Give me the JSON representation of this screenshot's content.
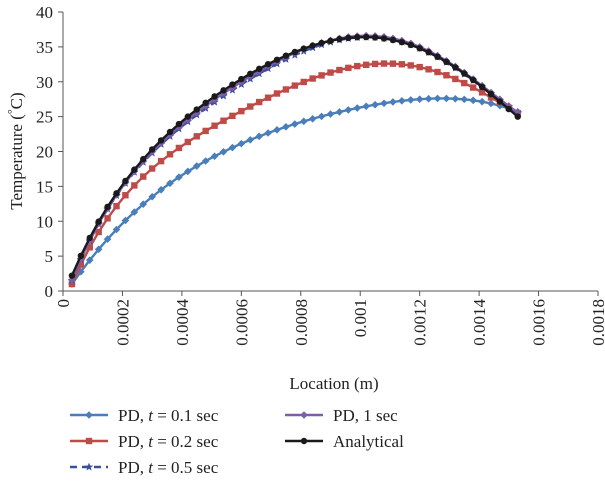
{
  "chart_data": {
    "type": "line",
    "title": "",
    "xlabel": "Location (m)",
    "ylabel": "Temperature (°C)",
    "xlim": [
      0,
      0.0018
    ],
    "ylim": [
      0,
      40
    ],
    "x_ticks": [
      0,
      0.0002,
      0.0004,
      0.0006,
      0.0008,
      0.001,
      0.0012,
      0.0014,
      0.0016,
      0.0018
    ],
    "x_tick_labels": [
      "0",
      "0.0002",
      "0.0004",
      "0.0006",
      "0.0008",
      "0.001",
      "0.0012",
      "0.0014",
      "0.0016",
      "0.0018"
    ],
    "y_ticks": [
      0,
      5,
      10,
      15,
      20,
      25,
      30,
      35,
      40
    ],
    "y_tick_labels": [
      "0",
      "5",
      "10",
      "15",
      "20",
      "25",
      "30",
      "35",
      "40"
    ],
    "grid": false,
    "legend_position": "bottom",
    "x_range": [
      3e-05,
      0.00153
    ],
    "points_per_series": 51,
    "series": [
      {
        "name": "PD, t = 0.1 sec",
        "color": "#4a7ebb",
        "marker": "diamond",
        "line": "solid",
        "values_at_key_x": {
          "0.00003": 1.0,
          "0.0004": 16.6,
          "0.0008": 24.2,
          "0.0012": 27.5,
          "0.00153": 25.7
        },
        "peak": [
          0.00125,
          27.6
        ]
      },
      {
        "name": "PD, t = 0.2 sec",
        "color": "#be4b48",
        "marker": "square",
        "line": "solid",
        "values_at_key_x": {
          "0.00003": 1.0,
          "0.0004": 20.8,
          "0.0008": 29.8,
          "0.0012": 32.1,
          "0.00153": 25.5
        },
        "peak": [
          0.00107,
          32.6
        ]
      },
      {
        "name": "PD, t = 0.5 sec",
        "color": "#3a4fa0",
        "marker": "star",
        "line": "dashed",
        "values_at_key_x": {
          "0.00003": 1.5,
          "0.0004": 23.6,
          "0.0008": 34.2,
          "0.0012": 34.8,
          "0.00153": 25.6
        },
        "peak": [
          0.00101,
          36.4
        ]
      },
      {
        "name": "PD, 1 sec",
        "color": "#7e5da8",
        "marker": "diamond",
        "line": "solid",
        "values_at_key_x": {
          "0.00003": 1.6,
          "0.0004": 23.9,
          "0.0008": 34.5,
          "0.0012": 35.0,
          "0.00153": 25.6
        },
        "peak": [
          0.00101,
          36.6
        ]
      },
      {
        "name": "Analytical",
        "color": "#1a1a1a",
        "marker": "circle",
        "line": "solid",
        "values_at_key_x": {
          "0.00003": 2.2,
          "0.0004": 24.3,
          "0.0008": 34.6,
          "0.0012": 34.8,
          "0.00153": 25.0
        },
        "peak": [
          0.001,
          36.4
        ]
      }
    ]
  },
  "legend": {
    "items": [
      {
        "prefix": "PD, ",
        "var": "t",
        "suffix": " = 0.1 sec"
      },
      {
        "prefix": "PD, ",
        "var": "",
        "suffix": "1 sec"
      },
      {
        "prefix": "PD, ",
        "var": "t",
        "suffix": " = 0.2 sec"
      },
      {
        "prefix": "",
        "var": "",
        "suffix": "Analytical"
      },
      {
        "prefix": "PD, ",
        "var": "t",
        "suffix": " = 0.5 sec"
      }
    ]
  }
}
